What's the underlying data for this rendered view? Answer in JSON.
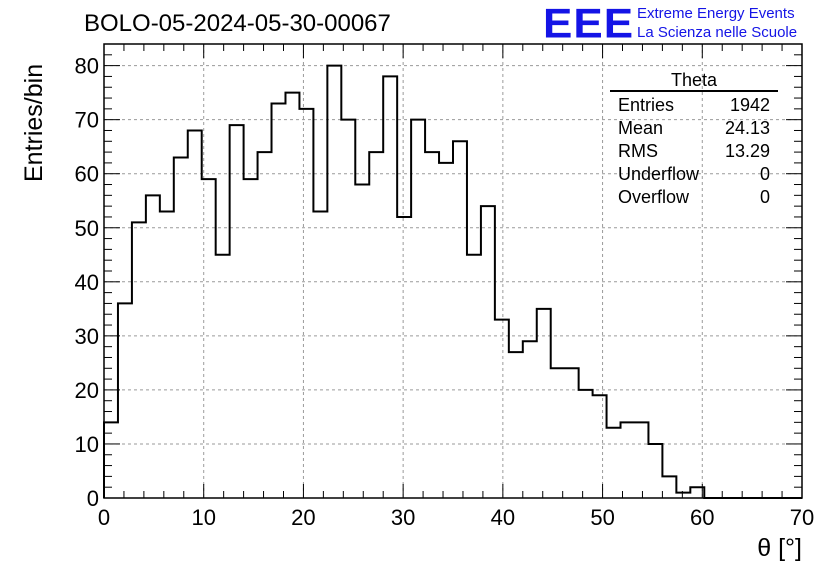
{
  "header": {
    "title": "BOLO-05-2024-05-30-00067",
    "logo": "EEE",
    "logo_line1": "Extreme Energy Events",
    "logo_line2": "La Scienza nelle Scuole"
  },
  "stats": {
    "name": "Theta",
    "rows": [
      {
        "label": "Entries",
        "value": "1942"
      },
      {
        "label": "Mean",
        "value": "24.13"
      },
      {
        "label": "RMS",
        "value": "13.29"
      },
      {
        "label": "Underflow",
        "value": "0"
      },
      {
        "label": "Overflow",
        "value": "0"
      }
    ]
  },
  "chart_data": {
    "type": "histogram",
    "title": "BOLO-05-2024-05-30-00067",
    "xlabel": "θ [°]",
    "ylabel": "Entries/bin",
    "xlim": [
      0,
      70
    ],
    "ylim": [
      0,
      84
    ],
    "bin_width": 1.4,
    "xticks": [
      0,
      10,
      20,
      30,
      40,
      50,
      60,
      70
    ],
    "yticks": [
      0,
      10,
      20,
      30,
      40,
      50,
      60,
      70,
      80
    ],
    "grid": true,
    "line_color": "#000000",
    "values": [
      14,
      36,
      51,
      56,
      53,
      63,
      68,
      59,
      45,
      69,
      59,
      64,
      73,
      75,
      72,
      53,
      80,
      70,
      58,
      64,
      78,
      52,
      70,
      64,
      62,
      66,
      45,
      54,
      33,
      27,
      29,
      35,
      24,
      24,
      20,
      19,
      13,
      14,
      14,
      10,
      4,
      1,
      2,
      0,
      0,
      0,
      0,
      0,
      0,
      0
    ]
  }
}
